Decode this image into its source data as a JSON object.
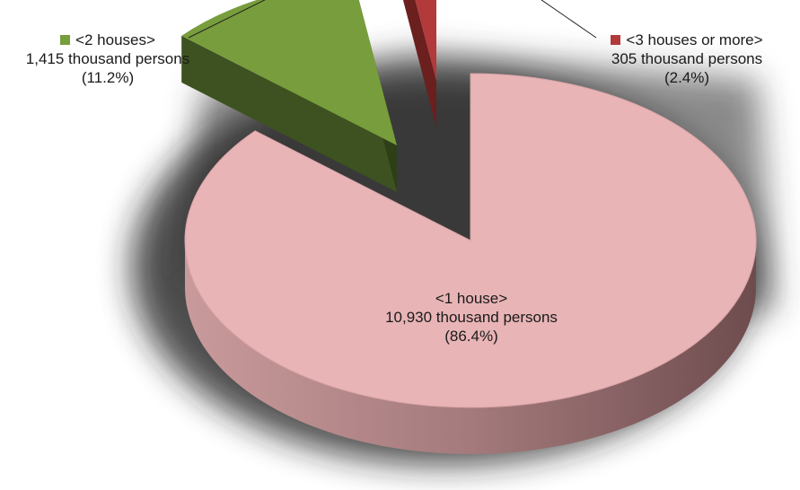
{
  "chart_data": {
    "type": "pie",
    "title": "",
    "slices": [
      {
        "key": "one",
        "category": "<1 house>",
        "value": 10930,
        "value_label": "10,930 thousand persons",
        "percent": 86.4,
        "percent_label": "(86.4%)",
        "color": "#e8b4b6",
        "side_color": "#b08486",
        "exploded": false
      },
      {
        "key": "two",
        "category": "<2 houses>",
        "value": 1415,
        "value_label": "1,415 thousand persons",
        "percent": 11.2,
        "percent_label": "(11.2%)",
        "color": "#789d3c",
        "side_color": "#3d5220",
        "exploded": true
      },
      {
        "key": "three",
        "category": "<3 houses or more>",
        "value": 305,
        "value_label": "305 thousand persons",
        "percent": 2.4,
        "percent_label": "(2.4%)",
        "color": "#b23a3a",
        "side_color": "#6b1f1f",
        "exploded": true
      }
    ],
    "legend": "none"
  }
}
